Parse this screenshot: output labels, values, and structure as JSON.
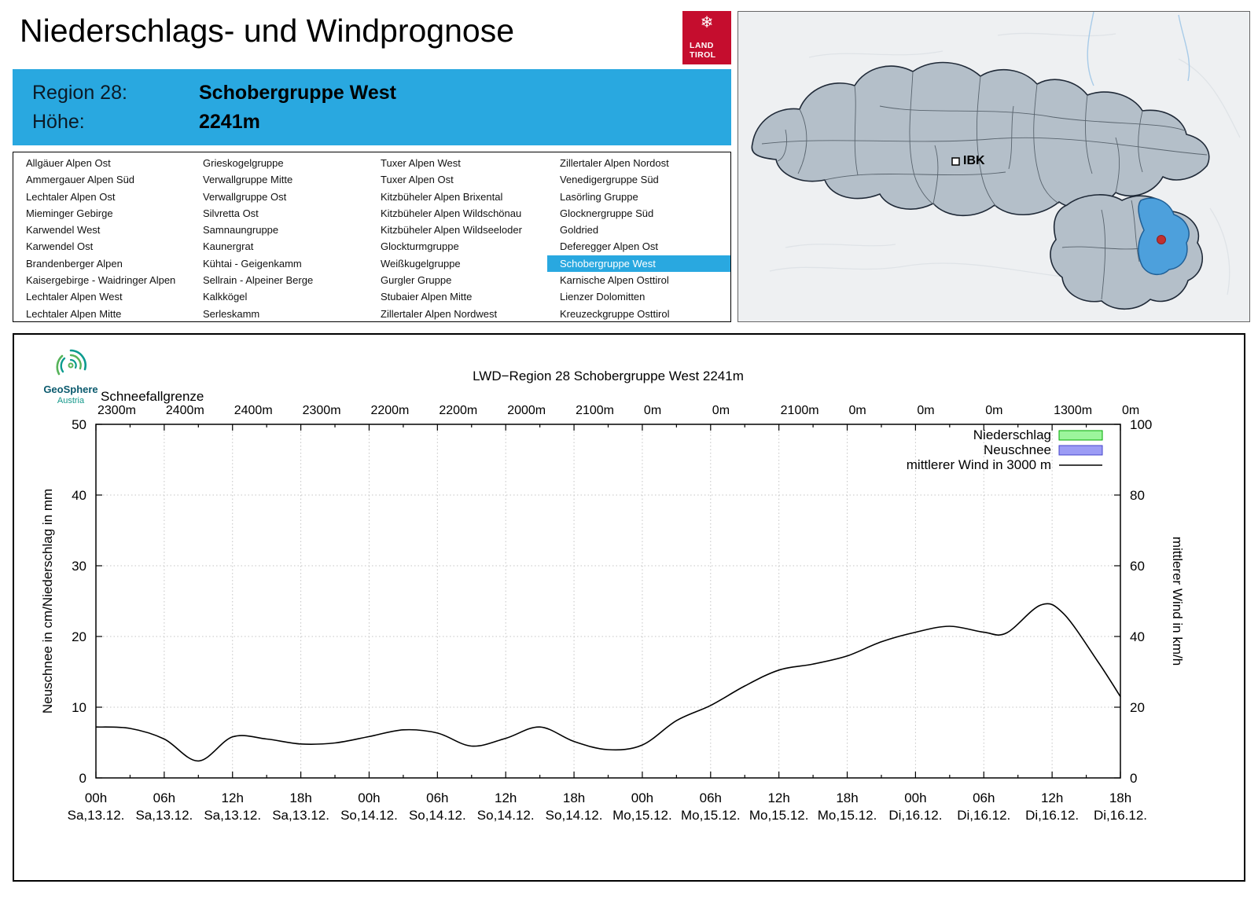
{
  "header": {
    "title": "Niederschlags- und Windprognose",
    "logo_line1": "LAND",
    "logo_line2": "TIROL",
    "snowflake_icon": "❄"
  },
  "colors": {
    "accent_blue": "#29a8e0",
    "tirol_red": "#c50d2e",
    "selected_region_fill": "#4da0dc"
  },
  "region_banner": {
    "region_label": "Region 28:",
    "region_value": "Schobergruppe West",
    "altitude_label": "Höhe:",
    "altitude_value": "2241m"
  },
  "region_table": {
    "selected": "Schobergruppe West",
    "columns": [
      [
        "Allgäuer Alpen Ost",
        "Ammergauer Alpen Süd",
        "Lechtaler Alpen Ost",
        "Mieminger Gebirge",
        "Karwendel West",
        "Karwendel Ost",
        "Brandenberger Alpen",
        "Kaisergebirge - Waidringer Alpen",
        "Lechtaler Alpen West",
        "Lechtaler Alpen Mitte"
      ],
      [
        "Grieskogelgruppe",
        "Verwallgruppe Mitte",
        "Verwallgruppe Ost",
        "Silvretta Ost",
        "Samnaungruppe",
        "Kaunergrat",
        "Kühtai - Geigenkamm",
        "Sellrain - Alpeiner Berge",
        "Kalkkögel",
        "Serleskamm"
      ],
      [
        "Tuxer Alpen West",
        "Tuxer Alpen Ost",
        "Kitzbüheler Alpen Brixental",
        "Kitzbüheler Alpen Wildschönau",
        "Kitzbüheler Alpen Wildseeloder",
        "Glockturmgruppe",
        "Weißkugelgruppe",
        "Gurgler Gruppe",
        "Stubaier Alpen Mitte",
        "Zillertaler Alpen Nordwest"
      ],
      [
        "Zillertaler Alpen Nordost",
        "Venedigergruppe Süd",
        "Lasörling Gruppe",
        "Glocknergruppe Süd",
        "Goldried",
        "Deferegger Alpen Ost",
        "Schobergruppe West",
        "Karnische Alpen Osttirol",
        "Lienzer Dolomitten",
        "Kreuzeckgruppe Osttirol"
      ]
    ]
  },
  "map": {
    "city_label": "IBK"
  },
  "branding": {
    "geosphere_name": "GeoSphere",
    "geosphere_sub": "Austria"
  },
  "chart_data": {
    "type": "line",
    "title": "LWD−Region 28 Schobergruppe West 2241m",
    "snowline": {
      "label": "Schneefallgrenze",
      "values": [
        "2300m",
        "2400m",
        "2400m",
        "2300m",
        "2200m",
        "2200m",
        "2000m",
        "2100m",
        "0m",
        "0m",
        "2100m",
        "0m",
        "0m",
        "0m",
        "1300m",
        "0m"
      ]
    },
    "axes": {
      "ylabel_left": "Neuschnee in cm/Niederschlag in mm",
      "ylabel_right": "mittlerer Wind in km/h",
      "ylim_left": [
        0,
        50
      ],
      "ylim_right": [
        0,
        100
      ],
      "yticks_left": [
        0,
        10,
        20,
        30,
        40,
        50
      ],
      "yticks_right": [
        0,
        20,
        40,
        60,
        80,
        100
      ],
      "x_hours_range": [
        0,
        90
      ],
      "x_tick_step_hours": 6,
      "grid": true,
      "x_ticks": [
        {
          "time": "00h",
          "date": "Sa,13.12."
        },
        {
          "time": "06h",
          "date": "Sa,13.12."
        },
        {
          "time": "12h",
          "date": "Sa,13.12."
        },
        {
          "time": "18h",
          "date": "Sa,13.12."
        },
        {
          "time": "00h",
          "date": "So,14.12."
        },
        {
          "time": "06h",
          "date": "So,14.12."
        },
        {
          "time": "12h",
          "date": "So,14.12."
        },
        {
          "time": "18h",
          "date": "So,14.12."
        },
        {
          "time": "00h",
          "date": "Mo,15.12."
        },
        {
          "time": "06h",
          "date": "Mo,15.12."
        },
        {
          "time": "12h",
          "date": "Mo,15.12."
        },
        {
          "time": "18h",
          "date": "Mo,15.12."
        },
        {
          "time": "00h",
          "date": "Di,16.12."
        },
        {
          "time": "06h",
          "date": "Di,16.12."
        },
        {
          "time": "12h",
          "date": "Di,16.12."
        },
        {
          "time": "18h",
          "date": "Di,16.12."
        }
      ]
    },
    "legend": [
      {
        "label": "Niederschlag",
        "type": "box",
        "fill": "#9cf59c",
        "stroke": "#00aa00"
      },
      {
        "label": "Neuschnee",
        "type": "box",
        "fill": "#9c9cf5",
        "stroke": "#4444cc"
      },
      {
        "label": "mittlerer Wind in 3000 m",
        "type": "line",
        "stroke": "#000000"
      }
    ],
    "series": [
      {
        "name": "mittlerer Wind in 3000 m",
        "axis": "right",
        "unit": "km/h",
        "points": [
          [
            0,
            14.4
          ],
          [
            3,
            14.0
          ],
          [
            6,
            11.0
          ],
          [
            9,
            4.8
          ],
          [
            12,
            11.6
          ],
          [
            15,
            11.0
          ],
          [
            18,
            9.6
          ],
          [
            21,
            9.9
          ],
          [
            24,
            11.7
          ],
          [
            27,
            13.6
          ],
          [
            30,
            12.7
          ],
          [
            33,
            9.0
          ],
          [
            36,
            11.2
          ],
          [
            39,
            14.4
          ],
          [
            42,
            10.3
          ],
          [
            45,
            8.0
          ],
          [
            48,
            9.3
          ],
          [
            51,
            16.2
          ],
          [
            54,
            20.5
          ],
          [
            57,
            26.0
          ],
          [
            60,
            30.5
          ],
          [
            63,
            32.2
          ],
          [
            66,
            34.5
          ],
          [
            69,
            38.5
          ],
          [
            72,
            41.2
          ],
          [
            75,
            42.9
          ],
          [
            78,
            41.2
          ],
          [
            80,
            41.0
          ],
          [
            83,
            48.9
          ],
          [
            85,
            46.5
          ],
          [
            88,
            33.0
          ],
          [
            90,
            23.0
          ]
        ]
      }
    ]
  }
}
